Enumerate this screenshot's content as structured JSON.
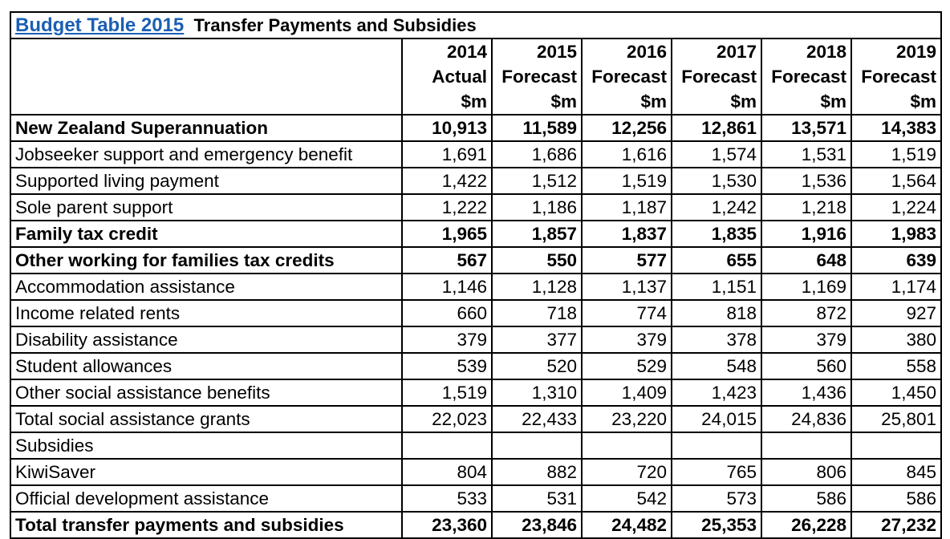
{
  "title": {
    "link": "Budget Table 2015",
    "rest": "Transfer Payments and Subsidies"
  },
  "columns": [
    {
      "year": "2014",
      "type": "Actual",
      "unit": "$m"
    },
    {
      "year": "2015",
      "type": "Forecast",
      "unit": "$m"
    },
    {
      "year": "2016",
      "type": "Forecast",
      "unit": "$m"
    },
    {
      "year": "2017",
      "type": "Forecast",
      "unit": "$m"
    },
    {
      "year": "2018",
      "type": "Forecast",
      "unit": "$m"
    },
    {
      "year": "2019",
      "type": "Forecast",
      "unit": "$m"
    }
  ],
  "rows": [
    {
      "label": "New Zealand Superannuation",
      "bold": true,
      "values": [
        "10,913",
        "11,589",
        "12,256",
        "12,861",
        "13,571",
        "14,383"
      ]
    },
    {
      "label": "Jobseeker support and emergency benefit",
      "bold": false,
      "values": [
        "1,691",
        "1,686",
        "1,616",
        "1,574",
        "1,531",
        "1,519"
      ]
    },
    {
      "label": "Supported living payment",
      "bold": false,
      "values": [
        "1,422",
        "1,512",
        "1,519",
        "1,530",
        "1,536",
        "1,564"
      ]
    },
    {
      "label": "Sole parent support",
      "bold": false,
      "values": [
        "1,222",
        "1,186",
        "1,187",
        "1,242",
        "1,218",
        "1,224"
      ]
    },
    {
      "label": "Family tax credit",
      "bold": true,
      "values": [
        "1,965",
        "1,857",
        "1,837",
        "1,835",
        "1,916",
        "1,983"
      ]
    },
    {
      "label": "Other working for families tax credits",
      "bold": true,
      "values": [
        "567",
        "550",
        "577",
        "655",
        "648",
        "639"
      ]
    },
    {
      "label": "Accommodation assistance",
      "bold": false,
      "values": [
        "1,146",
        "1,128",
        "1,137",
        "1,151",
        "1,169",
        "1,174"
      ]
    },
    {
      "label": "Income related rents",
      "bold": false,
      "values": [
        "660",
        "718",
        "774",
        "818",
        "872",
        "927"
      ]
    },
    {
      "label": "Disability assistance",
      "bold": false,
      "values": [
        "379",
        "377",
        "379",
        "378",
        "379",
        "380"
      ]
    },
    {
      "label": "Student allowances",
      "bold": false,
      "values": [
        "539",
        "520",
        "529",
        "548",
        "560",
        "558"
      ]
    },
    {
      "label": "Other social assistance benefits",
      "bold": false,
      "values": [
        "1,519",
        "1,310",
        "1,409",
        "1,423",
        "1,436",
        "1,450"
      ]
    },
    {
      "label": "Total social assistance grants",
      "bold": false,
      "values": [
        "22,023",
        "22,433",
        "23,220",
        "24,015",
        "24,836",
        "25,801"
      ]
    },
    {
      "label": "Subsidies",
      "bold": false,
      "values": [
        "",
        "",
        "",
        "",
        "",
        ""
      ]
    },
    {
      "label": "KiwiSaver",
      "bold": false,
      "values": [
        "804",
        "882",
        "720",
        "765",
        "806",
        "845"
      ]
    },
    {
      "label": "Official development assistance",
      "bold": false,
      "values": [
        "533",
        "531",
        "542",
        "573",
        "586",
        "586"
      ]
    },
    {
      "label": "Total transfer payments and subsidies",
      "bold": true,
      "values": [
        "23,360",
        "23,846",
        "24,482",
        "25,353",
        "26,228",
        "27,232"
      ]
    }
  ]
}
